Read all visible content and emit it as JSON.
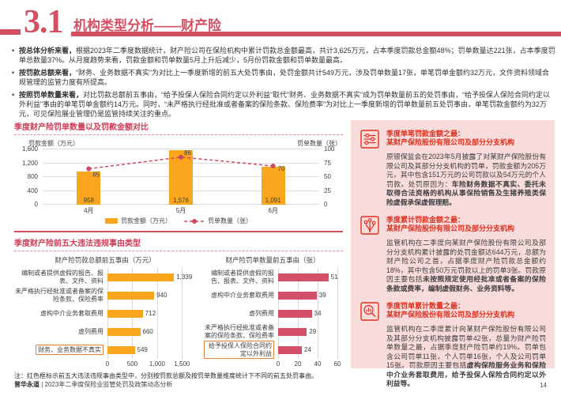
{
  "header": {
    "section_number": "3.1",
    "title": "机构类型分析——财产险"
  },
  "bullets": [
    {
      "segments": [
        {
          "text": "按总体分析来看，",
          "bold": true
        },
        {
          "text": "根据2023年二季度数据统计，财产险公司在保险机构中累计罚款总金额最高，共计3,625万元，占本季度罚款总金额48%；罚单数量达221张，占本季度罚单总数量37%。从月度趋势来看，罚款金额和罚单数量5月上升后减少，5月份罚款金额和罚单数量最高。",
          "bold": false
        }
      ]
    },
    {
      "segments": [
        {
          "text": "按罚款总额来看，",
          "bold": true
        },
        {
          "text": "“财务、业务数据不真实”为对比上一季度新增的前五大处罚事由，处罚金额共计549万元，涉及罚单数量17张，单笔罚单金额约32万元，文件资料领域合规管理的监管力度有所提高。",
          "bold": false
        }
      ]
    },
    {
      "segments": [
        {
          "text": "按照罚单数量来看，",
          "bold": true
        },
        {
          "text": "对比罚款总额前五事由，“给予投保人保险合同约定以外利益”取代“财务、业务数据不真实”成为罚单数量前五的处罚事由，“给予投保人保险合同约定以外利益”事由的单笔罚单金额约14万元。同时，“未严格执行经批准或者备案的保险条款、保险费率”为对比上一季度新增的罚单数量前五处罚事由，单笔罚款金额约为32万元，可见保险展业管理仍是监管持续关注的重点。",
          "bold": false
        }
      ]
    }
  ],
  "sections": {
    "bars_title": "季度财产险前五大违法违规事由类型"
  },
  "note": "注：红色框标示前五大违法违规事由类型中，分别按罚款总额及按罚单数量维度统计下不同的前五处罚事由。",
  "chart_data": [
    {
      "id": "quarterly-combo",
      "type": "bar",
      "title": "季度财产险罚单数量以及罚款金额对比",
      "categories": [
        "4月",
        "5月",
        "6月"
      ],
      "series": [
        {
          "name": "罚款金额（万元）",
          "kind": "bar",
          "values": [
            958,
            1576,
            1091
          ],
          "labels": [
            "958",
            "1,576",
            "1,091"
          ],
          "color": "#FAA61C",
          "axis": "left"
        },
        {
          "name": "罚单数量（张）",
          "kind": "line",
          "values": [
            65,
            86,
            70
          ],
          "labels": [
            "65",
            "86",
            "70"
          ],
          "color": "#D0495F",
          "axis": "right"
        }
      ],
      "left_axis": {
        "label": "罚款金额（万元）",
        "ticks": [
          "0",
          "400",
          "800",
          "1,200",
          "1,600"
        ],
        "max": 1600
      },
      "right_axis": {
        "label": "罚单数量（张）",
        "ticks": [
          "0",
          "25",
          "50",
          "75",
          "100"
        ],
        "max": 100
      },
      "grid": true,
      "legend_position": "bottom"
    },
    {
      "id": "top5-by-amount",
      "type": "bar",
      "orientation": "horizontal",
      "title": "财产险罚款总额前五事由（万元）",
      "categories": [
        "编制或者提供虚假的报告、报表、文件、资料",
        "未严格执行经批准或者备案的保险条款、保险费率",
        "虚构中介业务套取费用",
        "虚列费用",
        "财务、业务数据不真实"
      ],
      "values": [
        1339,
        940,
        712,
        660,
        549
      ],
      "value_labels": [
        "1,339",
        "940",
        "712",
        "660",
        "549"
      ],
      "ticks": [
        "0",
        "500",
        "1,000",
        "1,500"
      ],
      "tick_values": [
        0,
        500,
        1000,
        1500
      ],
      "axis_max": 1780,
      "color": "#FAA61C",
      "boxed_category_index": 4
    },
    {
      "id": "top5-by-count",
      "type": "bar",
      "orientation": "horizontal",
      "title": "财产险罚单数量前五事由（张）",
      "categories": [
        "编制或者提供虚假的报告、报表、文件、资料",
        "虚构中介业务套取费用",
        "虚列费用",
        "未严格执行经批准或者备案的保险条款、保险费率",
        "给予投保人保险合同约定以外利益"
      ],
      "values": [
        51,
        39,
        34,
        29,
        24
      ],
      "value_labels": [
        "51",
        "39",
        "34",
        "29",
        "24"
      ],
      "ticks": [
        "0",
        "20",
        "40",
        "60"
      ],
      "tick_values": [
        0,
        20,
        40,
        60
      ],
      "axis_max": 64,
      "color": "#D4506A",
      "boxed_category_index": 4
    }
  ],
  "panel": {
    "sections": [
      {
        "icon": "sliders-icon",
        "title_line1": "季度单笔罚款金额之最：",
        "title_line2": "某财产保险股份有限公司及部分分支机构",
        "body_segments": [
          {
            "text": "原银保监会在2023年5月披露了对某财产保险股份有限公司及其部分分支机构的罚单，罚款金额为205万元，其中包含151万元的公司罚款以及54万元的个人罚款。处罚原因为：",
            "bold": false
          },
          {
            "text": "车险财务数据不真实、委托未取得合法资格的机构从事保险销售及生猪养殖类保险虚假承保虚假理赔。",
            "bold": true
          }
        ]
      },
      {
        "icon": "network-nodes-icon",
        "title_line1": "季度累计罚款金额之最：",
        "title_line2": "某财产保险股份有限公司及部分分支机构",
        "body_segments": [
          {
            "text": "监管机构在二季度向某财产保险股份有限公司及部分分支机构累计披露的处罚金额达644万元，总额为财产险公司之首，占据季度财产险罚款总金额约18%，其中包含50万元罚款以上的罚单3张。罚款原因主要包括",
            "bold": false
          },
          {
            "text": "未按照规定使用经批准或者备案的保险条款或费率，编制虚假财务、业务资料等。",
            "bold": true
          }
        ]
      },
      {
        "icon": "chart-magnifier-icon",
        "title_line1": "季度罚单累计数量之最：",
        "title_line2": "某财产保险股份有限公司及部分分支机构",
        "body_segments": [
          {
            "text": "监管机构在二季度累计向某财产保险股份有限公司及其部分分支机构披露罚单42张，总量为财产险罚单数量之最，占据季度财产险罚单约19%。罚单包含公司罚单11张，个人罚单16张，个人及公司罚单15张。罚款原因主要包括",
            "bold": false
          },
          {
            "text": "虚构保险服务业务和保险中介业务套取费用，给予投保人保险合同约定以外利益等。",
            "bold": true
          }
        ]
      }
    ]
  },
  "footer": {
    "brand": "普华永道",
    "separator": " | ",
    "text": "2023年二季度保险业监管处罚及政策动态分析",
    "page": "14"
  }
}
